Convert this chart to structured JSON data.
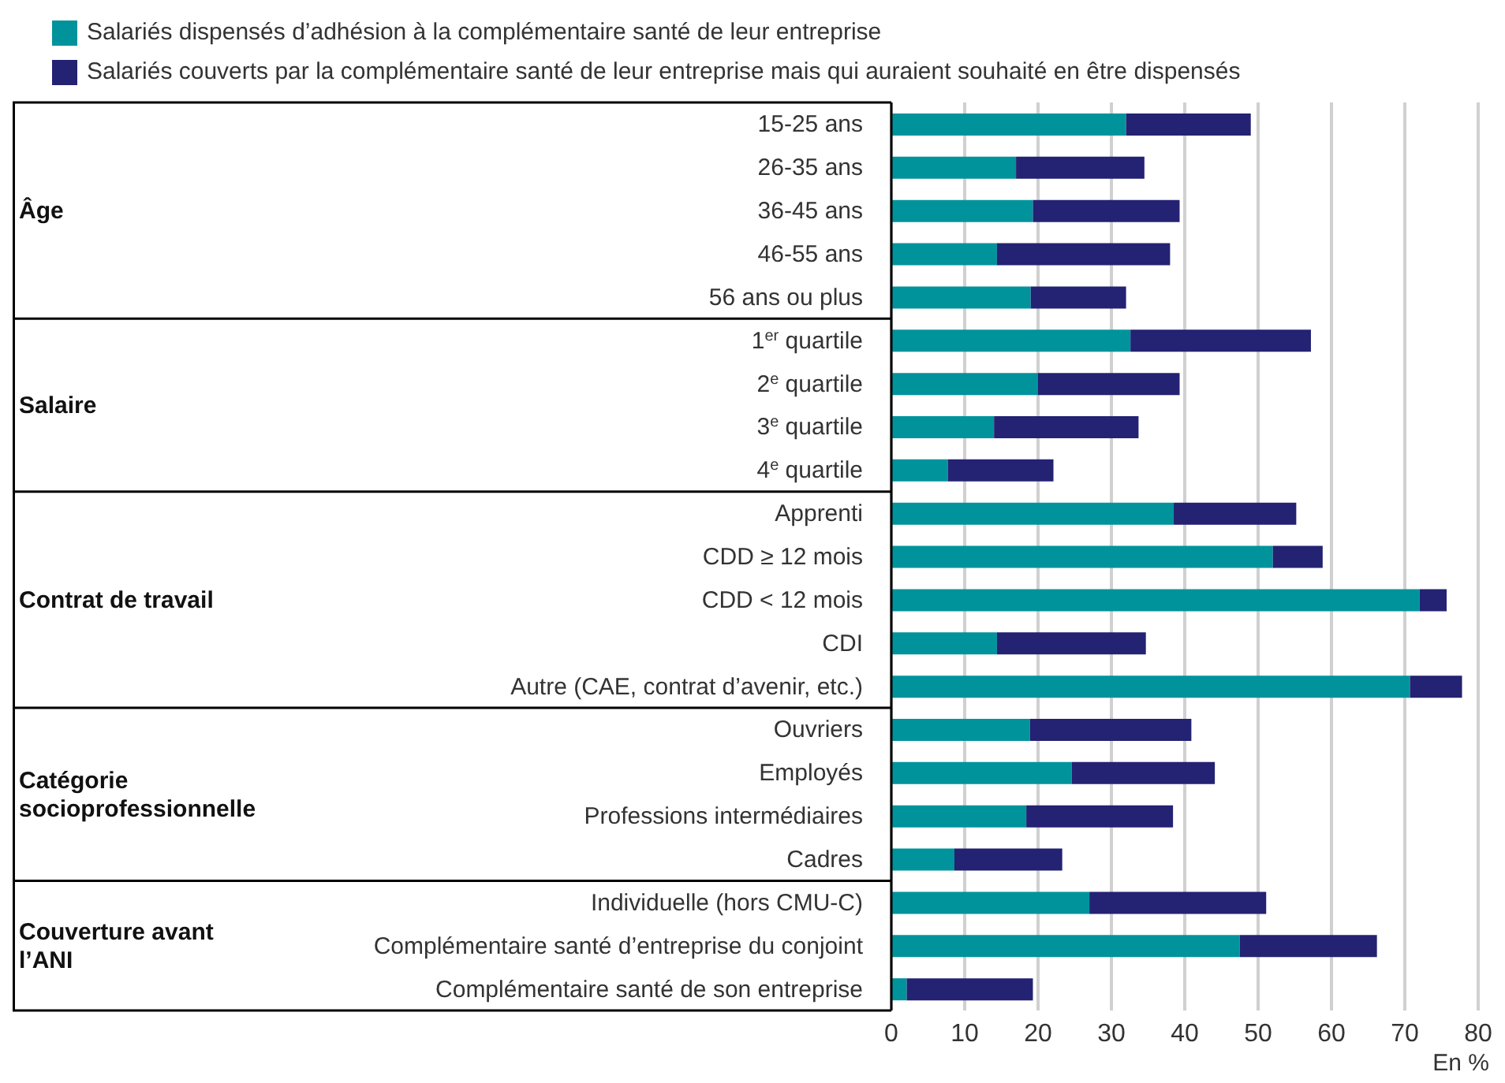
{
  "chart_data": {
    "type": "bar",
    "orientation": "horizontal",
    "stacked": true,
    "categories": [
      "15-25 ans",
      "26-35 ans",
      "36-45 ans",
      "46-55 ans",
      "56 ans ou plus",
      "1$^{er}$ quartile",
      "2$^{e}$ quartile",
      "3$^{e}$ quartile",
      "4$^{e}$ quartile",
      "Apprenti",
      "CDD ≥ 12 mois",
      "CDD < 12 mois",
      "CDI",
      "Autre (CAE, contrat d’avenir, etc.)",
      "Ouvriers",
      "Employés",
      "Professions intermédiaires",
      "Cadres",
      "Individuelle (hors CMU-C)",
      "Complémentaire santé d’entreprise du conjoint",
      "Complémentaire santé de son entreprise"
    ],
    "series": [
      {
        "name": "Salariés dispensés d’adhésion à la complémentaire santé de leur entreprise",
        "color": "#00939b",
        "values": [
          32,
          17,
          19.3,
          14.4,
          19,
          32.6,
          20,
          14,
          7.7,
          38.5,
          52,
          72,
          14.4,
          70.7,
          18.9,
          24.6,
          18.4,
          8.6,
          27,
          47.5,
          2.1
        ]
      },
      {
        "name": "Salariés couverts par la complémentaire santé de leur entreprise mais qui auraient souhaité en être dispensés",
        "color": "#232273",
        "values": [
          17,
          17.5,
          20,
          23.6,
          13,
          24.6,
          19.3,
          19.7,
          14.4,
          16.7,
          6.8,
          3.7,
          20.3,
          7.1,
          22,
          19.5,
          20,
          14.7,
          24.1,
          18.7,
          17.2
        ]
      }
    ],
    "xlim": [
      0,
      80
    ],
    "xticks": [
      0,
      10,
      20,
      30,
      40,
      50,
      60,
      70,
      80
    ],
    "xlabel": "En %",
    "grid": "x",
    "legend": "top left",
    "annotations": [
      "Âge",
      "Salaire",
      "Contrat de travail",
      "Catégorie socioprofessionnelle",
      "Couverture avant l’ANI"
    ]
  }
}
